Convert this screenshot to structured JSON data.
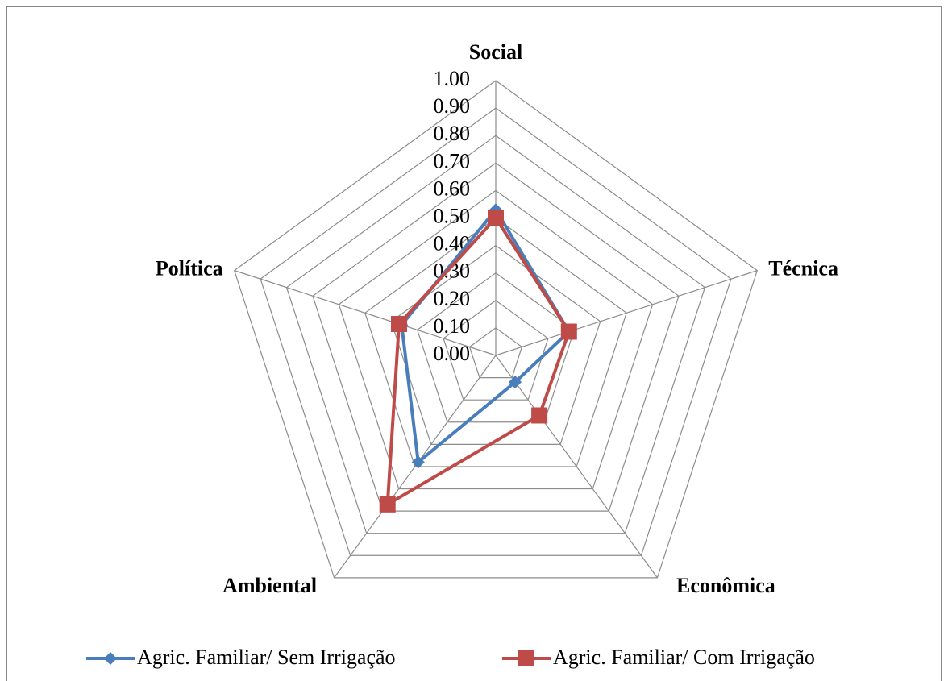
{
  "chart_data": {
    "type": "radar",
    "categories": [
      "Social",
      "Técnica",
      "Econômica",
      "Ambiental",
      "Política"
    ],
    "series": [
      {
        "name": "Agric. Familiar/ Sem Irrigação",
        "color": "#4a7ebb",
        "marker": "diamond",
        "values": [
          0.53,
          0.28,
          0.12,
          0.48,
          0.36
        ]
      },
      {
        "name": "Agric. Familiar/ Com Irrigação",
        "color": "#be4b48",
        "marker": "square",
        "values": [
          0.5,
          0.28,
          0.27,
          0.67,
          0.37
        ]
      }
    ],
    "ylim": [
      0,
      1
    ],
    "yticks": [
      {
        "value": 0,
        "label": "0.00"
      },
      {
        "value": 0.1,
        "label": "0.10"
      },
      {
        "value": 0.2,
        "label": "0.20"
      },
      {
        "value": 0.3,
        "label": "0.30"
      },
      {
        "value": 0.4,
        "label": "0.40"
      },
      {
        "value": 0.5,
        "label": "0.50"
      },
      {
        "value": 0.6,
        "label": "0.60"
      },
      {
        "value": 0.7,
        "label": "0.70"
      },
      {
        "value": 0.8,
        "label": "0.80"
      },
      {
        "value": 0.9,
        "label": "0.90"
      },
      {
        "value": 1,
        "label": "1.00"
      }
    ],
    "grid": true,
    "legend": "bottom"
  }
}
